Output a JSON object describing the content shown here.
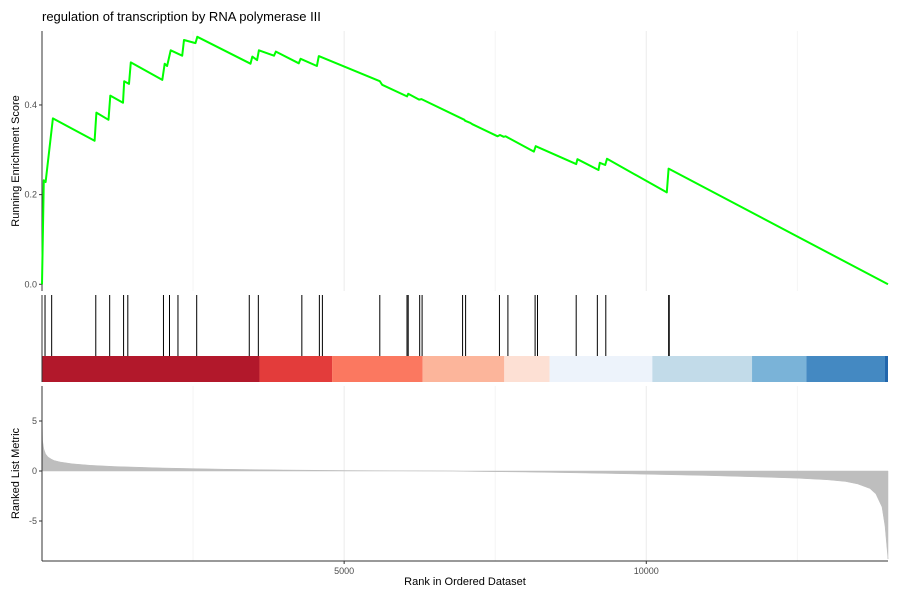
{
  "chart_data": {
    "type": "line",
    "title": "regulation of transcription by RNA polymerase III",
    "n_genes": 14000,
    "xlabel": "Rank in Ordered Dataset",
    "x_ticks": [
      5000,
      10000
    ],
    "x_tick_labels": [
      "5000",
      "10000"
    ],
    "panels": [
      {
        "id": "enrichment",
        "ylabel": "Running Enrichment Score",
        "ylim": [
          -0.015,
          0.565
        ],
        "y_ticks": [
          0.0,
          0.2,
          0.4
        ],
        "y_tick_labels": [
          "0.0",
          "0.2",
          "0.4"
        ],
        "grid": "vertical",
        "line_color": "#00ff00",
        "series": [
          {
            "x": [
              0,
              30,
              60,
              180,
              870,
              900,
              1100,
              1130,
              1340,
              1360,
              1440,
              1470,
              1990,
              2030,
              2070,
              2130,
              2320,
              2350,
              2540,
              2570,
              3450,
              3480,
              3560,
              3590,
              3840,
              3870,
              4250,
              4280,
              4550,
              4580,
              5590,
              5630,
              6040,
              6060,
              6240,
              6280,
              6990,
              7000,
              7090,
              7120,
              7540,
              7580,
              7640,
              7670,
              8140,
              8170,
              8840,
              8860,
              9210,
              9230,
              9320,
              9350,
              10340,
              10370,
              14000
            ],
            "y": [
              0.0,
              0.232,
              0.228,
              0.37,
              0.32,
              0.383,
              0.367,
              0.421,
              0.405,
              0.453,
              0.447,
              0.495,
              0.456,
              0.492,
              0.487,
              0.522,
              0.51,
              0.545,
              0.538,
              0.552,
              0.492,
              0.508,
              0.5,
              0.522,
              0.51,
              0.519,
              0.493,
              0.503,
              0.487,
              0.509,
              0.453,
              0.445,
              0.419,
              0.425,
              0.412,
              0.413,
              0.367,
              0.365,
              0.36,
              0.357,
              0.33,
              0.333,
              0.329,
              0.33,
              0.296,
              0.308,
              0.268,
              0.279,
              0.255,
              0.271,
              0.266,
              0.28,
              0.205,
              0.258,
              0.0
            ]
          }
        ]
      },
      {
        "id": "gene-hits",
        "hits": [
          50,
          160,
          890,
          1120,
          1350,
          1420,
          2010,
          2110,
          2250,
          2560,
          3430,
          3580,
          4300,
          4590,
          4640,
          5590,
          6040,
          6060,
          6250,
          6290,
          6960,
          7010,
          7570,
          7710,
          8160,
          8200,
          8840,
          9190,
          9330,
          10370,
          10380
        ]
      },
      {
        "id": "color-bar",
        "segments": [
          {
            "start": 0,
            "end": 3600,
            "color": "#b2182b"
          },
          {
            "start": 3600,
            "end": 4800,
            "color": "#e33c3b"
          },
          {
            "start": 4800,
            "end": 6300,
            "color": "#fb7860"
          },
          {
            "start": 6300,
            "end": 7650,
            "color": "#fcb59b"
          },
          {
            "start": 7650,
            "end": 8400,
            "color": "#fde0d4"
          },
          {
            "start": 8400,
            "end": 10100,
            "color": "#edf3fb"
          },
          {
            "start": 10100,
            "end": 11750,
            "color": "#c2dbe9"
          },
          {
            "start": 11750,
            "end": 12650,
            "color": "#7ab3d8"
          },
          {
            "start": 12650,
            "end": 13950,
            "color": "#4489c2"
          },
          {
            "start": 13950,
            "end": 14000,
            "color": "#2166ac"
          }
        ]
      },
      {
        "id": "ranked-metric",
        "ylabel": "Ranked List Metric",
        "ylim": [
          -9.0,
          8.5
        ],
        "y_ticks": [
          5,
          0,
          -5
        ],
        "y_tick_labels": [
          "5",
          "0",
          "-5"
        ],
        "fill_color": "#bebebe",
        "series": [
          {
            "x": [
              0,
              10,
              30,
              60,
              100,
              150,
              200,
              300,
              500,
              800,
              1200,
              2000,
              3000,
              4000,
              5000,
              6000,
              6800,
              7000,
              7200,
              8000,
              9000,
              10000,
              11000,
              12000,
              12500,
              13000,
              13300,
              13500,
              13700,
              13800,
              13900,
              13950,
              13980,
              14000
            ],
            "y": [
              5.8,
              3.0,
              2.2,
              1.7,
              1.4,
              1.2,
              1.05,
              0.9,
              0.72,
              0.57,
              0.45,
              0.3,
              0.18,
              0.1,
              0.05,
              0.02,
              0.0,
              -0.03,
              -0.05,
              -0.1,
              -0.2,
              -0.32,
              -0.45,
              -0.62,
              -0.72,
              -0.88,
              -1.05,
              -1.3,
              -1.75,
              -2.3,
              -3.6,
              -5.5,
              -7.5,
              -8.8
            ]
          }
        ]
      }
    ]
  }
}
